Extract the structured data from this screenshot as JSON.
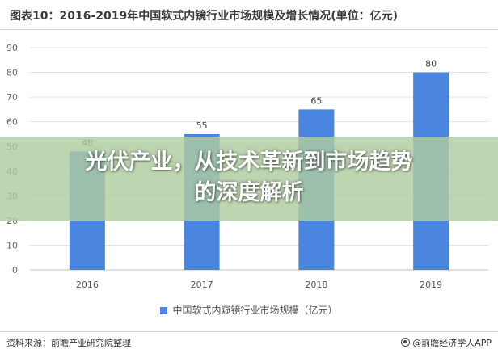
{
  "header": {
    "title": "图表10：2016-2019年中国软式内镜行业市场规模及增长情况(单位：亿元)"
  },
  "overlay": {
    "line1": "光伏产业，从技术革新到市场趋势",
    "line2": "的深度解析"
  },
  "footer": {
    "source": "资料来源：前瞻产业研究院整理",
    "brand": "@前瞻经济学人APP"
  },
  "colors": {
    "bar": "#4a86e0",
    "overlay": "#afcda0"
  },
  "chart_data": {
    "type": "bar",
    "title": "图表10：2016-2019年中国软式内镜行业市场规模及增长情况(单位：亿元)",
    "categories": [
      "2016",
      "2017",
      "2018",
      "2019"
    ],
    "series": [
      {
        "name": "中国软式内窥镜行业市场规模（亿元）",
        "values": [
          48,
          55,
          65,
          80
        ]
      }
    ],
    "xlabel": "",
    "ylabel": "",
    "ylim": [
      0,
      90
    ],
    "yticks": [
      0,
      10,
      20,
      30,
      40,
      50,
      60,
      70,
      80,
      90
    ],
    "grid": true,
    "legend": "bottom"
  }
}
